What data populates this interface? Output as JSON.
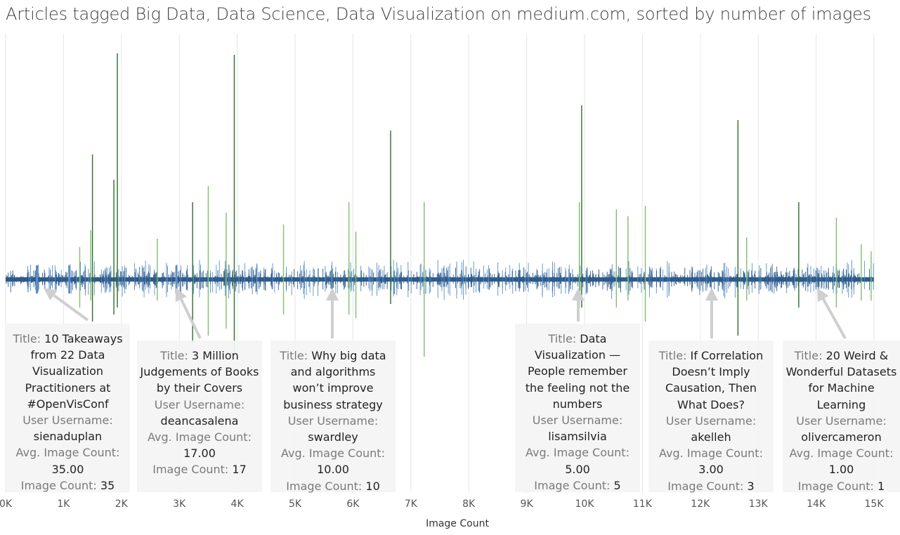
{
  "chart_data": {
    "type": "bar",
    "title": "Articles tagged Big Data, Data Science, Data Visualization on medium.com, sorted by number of images",
    "xlabel": "Image Count",
    "ylabel": "",
    "xlim": [
      0,
      15000
    ],
    "xticks": [
      "0K",
      "1K",
      "2K",
      "3K",
      "4K",
      "5K",
      "6K",
      "7K",
      "8K",
      "9K",
      "10K",
      "11K",
      "12K",
      "13K",
      "14K",
      "15K"
    ],
    "grid": "vertical",
    "colors": {
      "low": "#2f5b8b",
      "mid": "#5d8fc0",
      "green_light": "#7cc06c",
      "green_dark": "#2d6d2d"
    },
    "spikes": [
      {
        "x": 1500,
        "up": 178,
        "down": 60,
        "color": "#2d6d2d"
      },
      {
        "x": 1930,
        "up": 322,
        "down": 40,
        "color": "#2d6d2d"
      },
      {
        "x": 1870,
        "up": 142,
        "down": 50,
        "color": "#2d6d2d"
      },
      {
        "x": 1470,
        "up": 70,
        "down": 30,
        "color": "#7cc06c"
      },
      {
        "x": 1280,
        "up": 46,
        "down": 40,
        "color": "#7cc06c"
      },
      {
        "x": 3950,
        "up": 320,
        "down": 110,
        "color": "#2d6d2d"
      },
      {
        "x": 3810,
        "up": 95,
        "down": 70,
        "color": "#7cc06c"
      },
      {
        "x": 3500,
        "up": 133,
        "down": 80,
        "color": "#7cc06c"
      },
      {
        "x": 3230,
        "up": 110,
        "down": 90,
        "color": "#2d6d2d"
      },
      {
        "x": 2620,
        "up": 58,
        "down": 30,
        "color": "#7cc06c"
      },
      {
        "x": 4800,
        "up": 78,
        "down": 50,
        "color": "#7cc06c"
      },
      {
        "x": 6650,
        "up": 212,
        "down": 35,
        "color": "#2d6d2d"
      },
      {
        "x": 6050,
        "up": 68,
        "down": 55,
        "color": "#7cc06c"
      },
      {
        "x": 5930,
        "up": 110,
        "down": 50,
        "color": "#7cc06c"
      },
      {
        "x": 7230,
        "up": 110,
        "down": 110,
        "color": "#7cc06c"
      },
      {
        "x": 9950,
        "up": 248,
        "down": 40,
        "color": "#2d6d2d"
      },
      {
        "x": 9910,
        "up": 110,
        "down": 40,
        "color": "#7cc06c"
      },
      {
        "x": 10550,
        "up": 100,
        "down": 40,
        "color": "#7cc06c"
      },
      {
        "x": 10750,
        "up": 90,
        "down": 30,
        "color": "#7cc06c"
      },
      {
        "x": 11050,
        "up": 105,
        "down": 60,
        "color": "#7cc06c"
      },
      {
        "x": 12650,
        "up": 227,
        "down": 80,
        "color": "#2d6d2d"
      },
      {
        "x": 12800,
        "up": 60,
        "down": 30,
        "color": "#7cc06c"
      },
      {
        "x": 13700,
        "up": 110,
        "down": 40,
        "color": "#2d6d2d"
      },
      {
        "x": 14350,
        "up": 88,
        "down": 40,
        "color": "#7cc06c"
      },
      {
        "x": 14780,
        "up": 50,
        "down": 30,
        "color": "#7cc06c"
      },
      {
        "x": 14950,
        "up": 40,
        "down": 30,
        "color": "#7cc06c"
      }
    ],
    "annotations": [
      {
        "title": "10 Takeaways from 22 Data Visualization Practitioners at #OpenVisConf",
        "user": "sienaduplan",
        "avg": "35.00",
        "count": "35",
        "x": 530
      },
      {
        "title": "3 Million Judgements of Books by their Covers",
        "user": "deancasalena",
        "avg": "17.00",
        "count": "17",
        "x": 2950
      },
      {
        "title": "Why big data and algorithms won’t improve business strategy",
        "user": "swardley",
        "avg": "10.00",
        "count": "10",
        "x": 5650
      },
      {
        "title": "Data Visualization — People remember the feeling not the numbers",
        "user": "lisamsilvia",
        "avg": "5.00",
        "count": "5",
        "x": 9910
      },
      {
        "title": "If Correlation Doesn’t Imply Causation, Then What Does?",
        "user": "akelleh",
        "avg": "3.00",
        "count": "3",
        "x": 12200
      },
      {
        "title": "20 Weird & Wonderful Datasets for Machine Learning",
        "user": "olivercameron",
        "avg": "1.00",
        "count": "1",
        "x": 14000
      }
    ]
  },
  "labels": {
    "title": "Title:",
    "user": "User Username:",
    "avg": "Avg. Image Count:",
    "count": "Image Count:"
  }
}
